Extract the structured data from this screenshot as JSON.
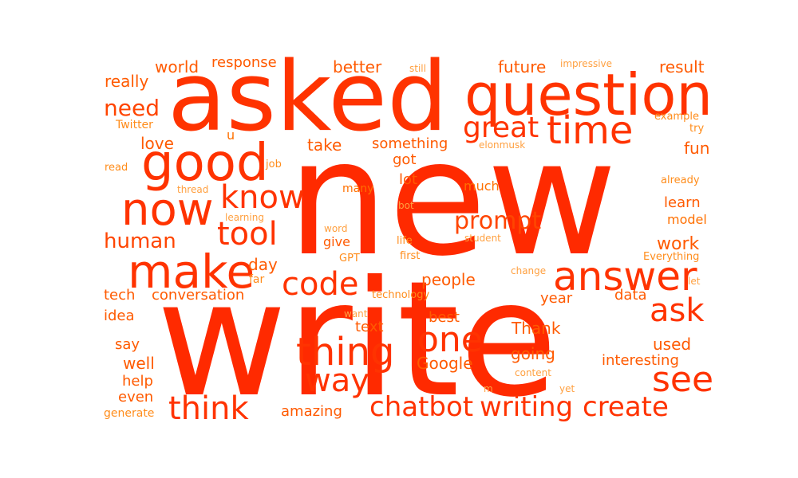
{
  "colors": {
    "background": "#ffffff",
    "palette": [
      "#ff2a00",
      "#ff3300",
      "#ff4500",
      "#ff5a00",
      "#ff7000",
      "#ff8c1a",
      "#ffa040"
    ]
  },
  "words": {
    "new": "new",
    "write": "write",
    "asked": "asked",
    "question": "question",
    "good": "good",
    "time": "time",
    "now": "now",
    "make": "make",
    "answer": "answer",
    "thing": "thing",
    "one": "one",
    "see": "see",
    "way": "way",
    "think": "think",
    "chatbot": "chatbot",
    "writing": "writing",
    "create": "create",
    "code": "code",
    "ask": "ask",
    "know": "know",
    "tool": "tool",
    "great": "great",
    "prompt": "prompt",
    "need": "need",
    "human": "human",
    "world": "world",
    "response": "response",
    "better": "better",
    "future": "future",
    "result": "result",
    "really": "really",
    "love": "love",
    "take": "take",
    "something": "something",
    "fun": "fun",
    "got": "got",
    "lot": "lot",
    "learn": "learn",
    "work": "work",
    "day": "day",
    "people": "people",
    "tech": "tech",
    "conversation": "conversation",
    "data": "data",
    "year": "year",
    "idea": "idea",
    "text": "text",
    "best": "best",
    "Thank": "Thank",
    "used": "used",
    "say": "say",
    "going": "going",
    "well": "well",
    "Google": "Google",
    "interesting": "interesting",
    "help": "help",
    "even": "even",
    "amazing": "amazing",
    "generate": "generate",
    "give": "give",
    "much": "much",
    "model": "model",
    "many": "many",
    "Twitter": "Twitter",
    "u": "u",
    "read": "read",
    "job": "job",
    "thread": "thread",
    "learning": "learning",
    "still": "still",
    "impressive": "impressive",
    "example": "example",
    "try": "try",
    "elonmusk": "elonmusk",
    "already": "already",
    "word": "word",
    "bot": "bot",
    "student": "student",
    "life": "life",
    "GPT": "GPT",
    "first": "first",
    "Everything": "Everything",
    "far": "far",
    "change": "change",
    "let": "let",
    "technology": "technology",
    "want": "want",
    "content": "content",
    "yet": "yet",
    "m": "m"
  }
}
